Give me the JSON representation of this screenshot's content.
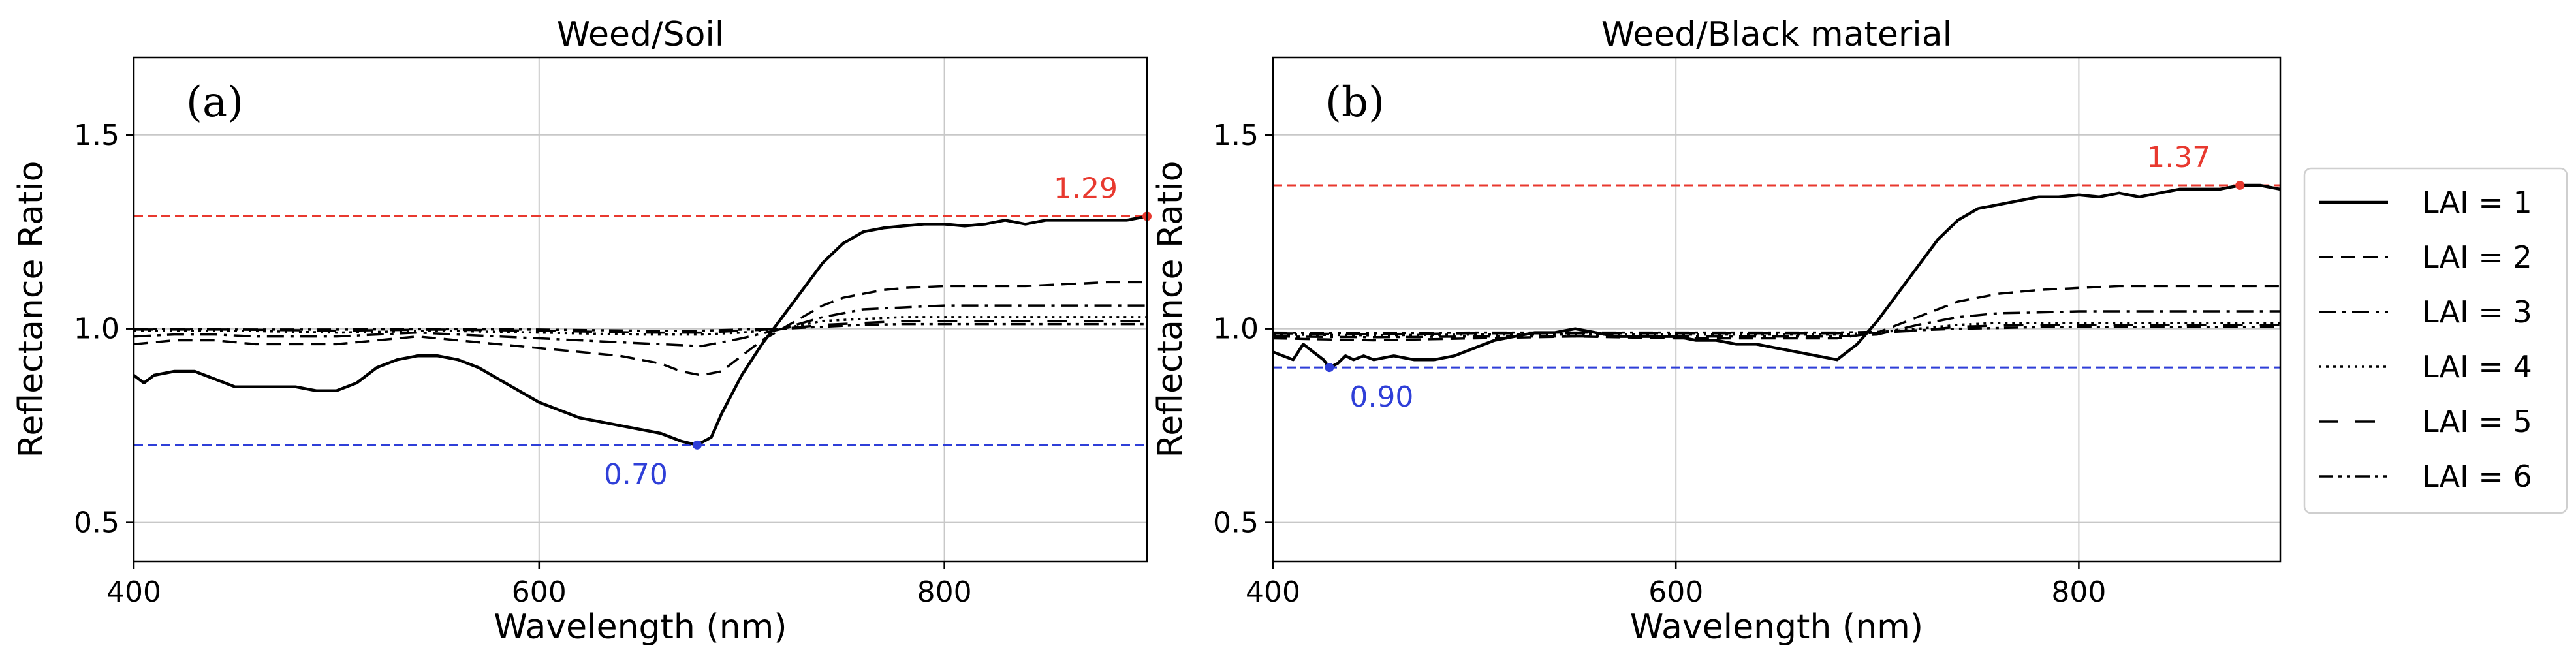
{
  "chart_data": [
    {
      "type": "line",
      "panel_label": "(a)",
      "title": "Weed/Soil",
      "xlabel": "Wavelength (nm)",
      "ylabel": "Reflectance Ratio",
      "xlim": [
        400,
        900
      ],
      "ylim": [
        0.4,
        1.7
      ],
      "xticks": [
        400,
        600,
        800
      ],
      "yticks": [
        0.5,
        1.0,
        1.5
      ],
      "xtick_labels": [
        "400",
        "600",
        "800"
      ],
      "ytick_labels": [
        "0.5",
        "1.0",
        "1.5"
      ],
      "grid": true,
      "hlines": [
        {
          "y": 1.29,
          "color": "#e8392f",
          "label": "1.29",
          "marker_x": 900
        },
        {
          "y": 0.7,
          "color": "#2f3fd8",
          "label": "0.70",
          "marker_x": 678
        }
      ],
      "series": [
        {
          "name": "LAI = 1",
          "dash": "solid",
          "x": [
            400,
            405,
            410,
            420,
            430,
            440,
            450,
            460,
            470,
            480,
            490,
            500,
            510,
            520,
            530,
            540,
            550,
            560,
            570,
            580,
            590,
            600,
            610,
            620,
            630,
            640,
            650,
            660,
            670,
            678,
            685,
            690,
            700,
            710,
            720,
            730,
            740,
            750,
            760,
            770,
            780,
            790,
            800,
            810,
            820,
            830,
            840,
            850,
            860,
            870,
            880,
            890,
            900
          ],
          "y": [
            0.88,
            0.86,
            0.88,
            0.89,
            0.89,
            0.87,
            0.85,
            0.85,
            0.85,
            0.85,
            0.84,
            0.84,
            0.86,
            0.9,
            0.92,
            0.93,
            0.93,
            0.92,
            0.9,
            0.87,
            0.84,
            0.81,
            0.79,
            0.77,
            0.76,
            0.75,
            0.74,
            0.73,
            0.71,
            0.7,
            0.72,
            0.78,
            0.88,
            0.96,
            1.03,
            1.1,
            1.17,
            1.22,
            1.25,
            1.26,
            1.265,
            1.27,
            1.27,
            1.265,
            1.27,
            1.28,
            1.27,
            1.28,
            1.28,
            1.28,
            1.28,
            1.28,
            1.29
          ]
        },
        {
          "name": "LAI = 2",
          "dash": "dashed",
          "x": [
            400,
            420,
            440,
            460,
            480,
            500,
            520,
            540,
            560,
            580,
            600,
            620,
            640,
            660,
            670,
            680,
            690,
            700,
            710,
            720,
            730,
            740,
            750,
            760,
            770,
            780,
            800,
            820,
            840,
            860,
            880,
            900
          ],
          "y": [
            0.96,
            0.97,
            0.97,
            0.96,
            0.96,
            0.96,
            0.97,
            0.98,
            0.97,
            0.96,
            0.95,
            0.94,
            0.93,
            0.91,
            0.89,
            0.88,
            0.89,
            0.93,
            0.97,
            1.0,
            1.03,
            1.06,
            1.08,
            1.09,
            1.1,
            1.105,
            1.11,
            1.11,
            1.11,
            1.115,
            1.12,
            1.12
          ]
        },
        {
          "name": "LAI = 3",
          "dash": "dashdot",
          "x": [
            400,
            420,
            440,
            460,
            480,
            500,
            520,
            540,
            560,
            580,
            600,
            620,
            640,
            660,
            680,
            700,
            720,
            740,
            760,
            780,
            800,
            820,
            840,
            860,
            880,
            900
          ],
          "y": [
            0.98,
            0.985,
            0.985,
            0.98,
            0.98,
            0.98,
            0.985,
            0.99,
            0.985,
            0.98,
            0.975,
            0.97,
            0.965,
            0.96,
            0.955,
            0.975,
            1.0,
            1.03,
            1.05,
            1.055,
            1.06,
            1.06,
            1.06,
            1.06,
            1.06,
            1.06
          ]
        },
        {
          "name": "LAI = 4",
          "dash": "dotted",
          "x": [
            400,
            450,
            500,
            550,
            600,
            650,
            680,
            700,
            720,
            740,
            760,
            780,
            800,
            850,
            900
          ],
          "y": [
            0.995,
            0.995,
            0.99,
            0.995,
            0.99,
            0.985,
            0.985,
            0.99,
            1.0,
            1.02,
            1.025,
            1.03,
            1.03,
            1.03,
            1.03
          ]
        },
        {
          "name": "LAI = 5",
          "dash": "loosedash",
          "x": [
            400,
            450,
            500,
            550,
            600,
            650,
            680,
            700,
            720,
            740,
            760,
            780,
            800,
            850,
            900
          ],
          "y": [
            0.998,
            0.998,
            0.995,
            0.998,
            0.995,
            0.99,
            0.99,
            0.995,
            1.0,
            1.01,
            1.015,
            1.02,
            1.02,
            1.02,
            1.02
          ]
        },
        {
          "name": "LAI = 6",
          "dash": "dashdotdot",
          "x": [
            400,
            450,
            500,
            550,
            600,
            650,
            680,
            700,
            720,
            740,
            760,
            780,
            800,
            850,
            900
          ],
          "y": [
            1.0,
            0.998,
            0.998,
            0.999,
            0.998,
            0.995,
            0.995,
            0.998,
            1.0,
            1.005,
            1.01,
            1.012,
            1.012,
            1.012,
            1.012
          ]
        }
      ]
    },
    {
      "type": "line",
      "panel_label": "(b)",
      "title": "Weed/Black material",
      "xlabel": "Wavelength (nm)",
      "ylabel": "Reflectance Ratio",
      "xlim": [
        400,
        900
      ],
      "ylim": [
        0.4,
        1.7
      ],
      "xticks": [
        400,
        600,
        800
      ],
      "yticks": [
        0.5,
        1.0,
        1.5
      ],
      "xtick_labels": [
        "400",
        "600",
        "800"
      ],
      "ytick_labels": [
        "0.5",
        "1.0",
        "1.5"
      ],
      "grid": true,
      "hlines": [
        {
          "y": 1.37,
          "color": "#e8392f",
          "label": "1.37",
          "marker_x": 880
        },
        {
          "y": 0.9,
          "color": "#2f3fd8",
          "label": "0.90",
          "marker_x": 428
        }
      ],
      "series": [
        {
          "name": "LAI = 1",
          "dash": "solid",
          "x": [
            400,
            405,
            410,
            415,
            420,
            425,
            428,
            432,
            436,
            440,
            445,
            450,
            460,
            470,
            480,
            490,
            500,
            510,
            520,
            530,
            540,
            550,
            560,
            570,
            580,
            590,
            600,
            610,
            620,
            630,
            640,
            650,
            660,
            670,
            680,
            690,
            700,
            710,
            720,
            730,
            740,
            750,
            760,
            770,
            780,
            790,
            800,
            810,
            820,
            830,
            840,
            850,
            860,
            870,
            880,
            890,
            900
          ],
          "y": [
            0.94,
            0.93,
            0.92,
            0.96,
            0.94,
            0.92,
            0.9,
            0.91,
            0.93,
            0.92,
            0.93,
            0.92,
            0.93,
            0.92,
            0.92,
            0.93,
            0.95,
            0.97,
            0.98,
            0.99,
            0.99,
            1.0,
            0.99,
            0.98,
            0.98,
            0.98,
            0.98,
            0.97,
            0.97,
            0.96,
            0.96,
            0.95,
            0.94,
            0.93,
            0.92,
            0.96,
            1.02,
            1.09,
            1.16,
            1.23,
            1.28,
            1.31,
            1.32,
            1.33,
            1.34,
            1.34,
            1.345,
            1.34,
            1.35,
            1.34,
            1.35,
            1.36,
            1.36,
            1.36,
            1.37,
            1.37,
            1.36
          ]
        },
        {
          "name": "LAI = 2",
          "dash": "dashed",
          "x": [
            400,
            450,
            500,
            550,
            600,
            650,
            680,
            700,
            720,
            740,
            760,
            780,
            800,
            820,
            850,
            880,
            900
          ],
          "y": [
            0.975,
            0.97,
            0.975,
            0.98,
            0.975,
            0.975,
            0.975,
            0.99,
            1.03,
            1.07,
            1.09,
            1.1,
            1.105,
            1.11,
            1.11,
            1.11,
            1.11
          ]
        },
        {
          "name": "LAI = 3",
          "dash": "dashdot",
          "x": [
            400,
            450,
            500,
            550,
            600,
            650,
            680,
            700,
            720,
            740,
            760,
            780,
            800,
            850,
            900
          ],
          "y": [
            0.98,
            0.978,
            0.98,
            0.98,
            0.98,
            0.98,
            0.98,
            0.985,
            1.01,
            1.03,
            1.04,
            1.042,
            1.045,
            1.045,
            1.045
          ]
        },
        {
          "name": "LAI = 4",
          "dash": "dotted",
          "x": [
            400,
            450,
            500,
            550,
            600,
            650,
            680,
            700,
            720,
            740,
            760,
            780,
            800,
            850,
            900
          ],
          "y": [
            0.985,
            0.983,
            0.985,
            0.985,
            0.985,
            0.985,
            0.985,
            0.99,
            1.0,
            1.01,
            1.015,
            1.015,
            1.015,
            1.015,
            1.015
          ]
        },
        {
          "name": "LAI = 5",
          "dash": "loosedash",
          "x": [
            400,
            450,
            500,
            550,
            600,
            650,
            680,
            700,
            720,
            740,
            760,
            780,
            800,
            850,
            900
          ],
          "y": [
            0.988,
            0.986,
            0.988,
            0.988,
            0.988,
            0.988,
            0.988,
            0.99,
            0.995,
            1.005,
            1.008,
            1.01,
            1.01,
            1.01,
            1.01
          ]
        },
        {
          "name": "LAI = 6",
          "dash": "dashdotdot",
          "x": [
            400,
            450,
            500,
            550,
            600,
            650,
            680,
            700,
            720,
            740,
            760,
            780,
            800,
            850,
            900
          ],
          "y": [
            0.99,
            0.988,
            0.99,
            0.99,
            0.99,
            0.99,
            0.99,
            0.992,
            0.996,
            1.0,
            1.002,
            1.004,
            1.004,
            1.004,
            1.004
          ]
        }
      ]
    }
  ],
  "legend": {
    "entries": [
      "LAI = 1",
      "LAI = 2",
      "LAI = 3",
      "LAI = 4",
      "LAI = 5",
      "LAI = 6"
    ],
    "position": "right"
  },
  "colors": {
    "line": "#000000",
    "grid": "#c8c8c8",
    "max_line": "#e8392f",
    "min_line": "#2f3fd8"
  }
}
